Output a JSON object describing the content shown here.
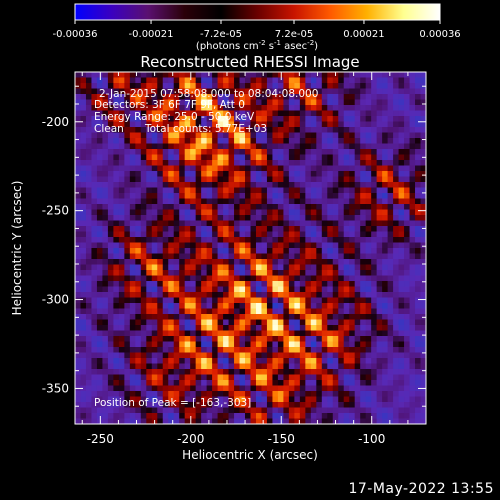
{
  "colorbar": {
    "ticks": [
      "-0.00036",
      "-0.00021",
      "-7.2e-05",
      "7.2e-05",
      "0.00021",
      "0.00036"
    ],
    "tick_values": [
      -0.00036,
      -0.00021,
      -7.2e-05,
      7.2e-05,
      0.00021,
      0.00036
    ],
    "range": [
      -0.00036,
      0.00036
    ],
    "units_prefix": "(photons cm",
    "units_exp1": "-2",
    "units_mid1": " s",
    "units_exp2": "-1",
    "units_mid2": " asec",
    "units_exp3": "-2",
    "units_suffix": ")",
    "stops": [
      "#0000ff",
      "#3a00c0",
      "#5a1070",
      "#2a0008",
      "#000000",
      "#6a0000",
      "#c81400",
      "#ff5a00",
      "#ffb000",
      "#ffff90",
      "#ffffff"
    ]
  },
  "chart_data": {
    "type": "heatmap",
    "title": "Reconstructed RHESSI Image",
    "xlabel": "Heliocentric X (arcsec)",
    "ylabel": "Heliocentric Y (arcsec)",
    "xlim": [
      -264,
      -70
    ],
    "ylim": [
      -370,
      -172
    ],
    "x_ticks": [
      -250,
      -200,
      -150,
      -100
    ],
    "y_ticks": [
      -200,
      -250,
      -300,
      -350
    ],
    "peak": [
      -163,
      -303
    ],
    "grid": false
  },
  "annotations": {
    "time_range": "2-Jan-2015 07:58:08.000 to 08:04:08.000",
    "detectors": "Detectors: 3F 6F 7F 9F, Att 0",
    "energy": "Energy Range: 25.0 - 50.0 keV",
    "method": "Clean",
    "counts": "Total counts: 5.77E+03",
    "peak": "Position of Peak = [-163,-303]"
  },
  "footer": {
    "timestamp": "17-May-2022 13:55"
  }
}
